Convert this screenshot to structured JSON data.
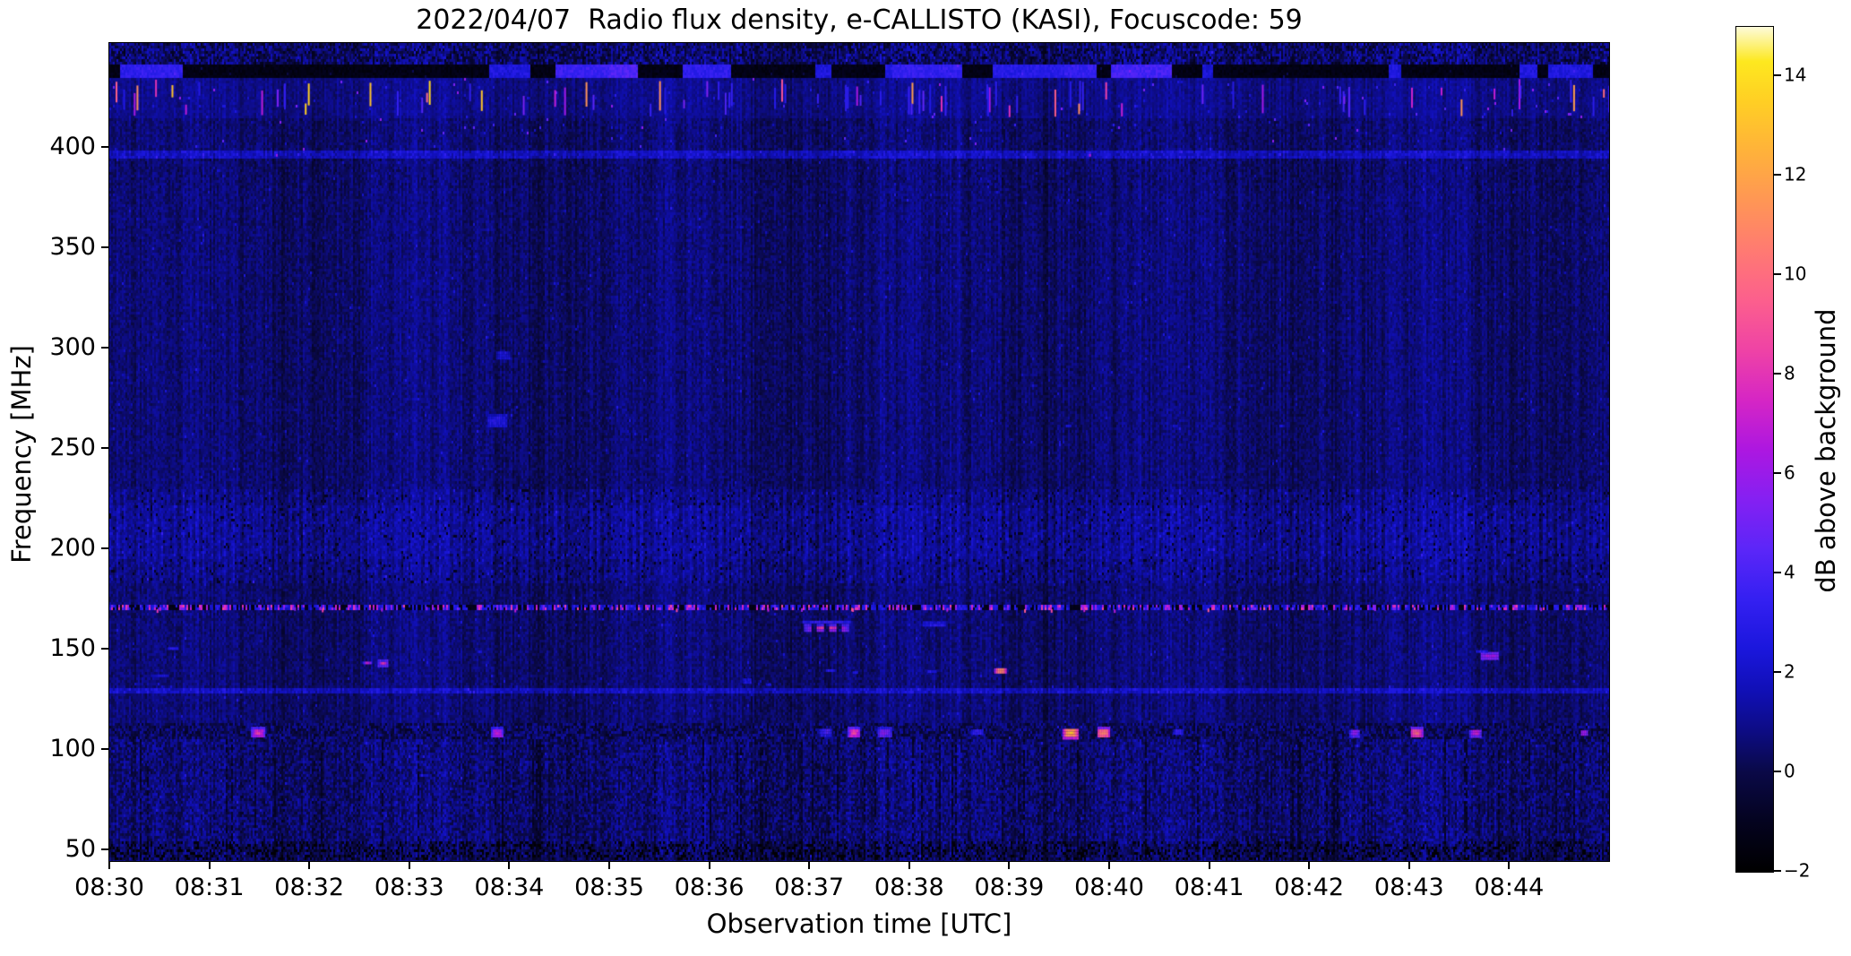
{
  "figure": {
    "background_color": "#ffffff",
    "spine_color": "#000000",
    "text_color": "#000000"
  },
  "chart_data": {
    "type": "heatmap",
    "title": "2022/04/07  Radio flux density, e-CALLISTO (KASI), Focuscode: 59",
    "xlabel": "Observation time [UTC]",
    "ylabel": "Frequency [MHz]",
    "colorbar_label": "dB above background",
    "x_ticks": [
      "08:30",
      "08:31",
      "08:32",
      "08:33",
      "08:34",
      "08:35",
      "08:36",
      "08:37",
      "08:38",
      "08:39",
      "08:40",
      "08:41",
      "08:42",
      "08:43",
      "08:44"
    ],
    "y_ticks": [
      "400",
      "350",
      "300",
      "250",
      "200",
      "150",
      "100",
      "50"
    ],
    "colorbar_ticks": [
      "14",
      "12",
      "10",
      "8",
      "6",
      "4",
      "2",
      "0",
      "−2"
    ],
    "x_range_utc": {
      "start": "08:30:00",
      "end": "08:45:00"
    },
    "y_range_mhz": [
      44,
      452
    ],
    "color_range_db": [
      -2,
      15
    ],
    "grid": false,
    "legend": "none",
    "background_noise_db": {
      "base": 0.55,
      "column_variation": 0.85,
      "cell_variation": 1.1
    },
    "colormap_stops": [
      {
        "db": -2.0,
        "color": "#000000"
      },
      {
        "db": -1.0,
        "color": "#04031f"
      },
      {
        "db": 0.0,
        "color": "#0a0947"
      },
      {
        "db": 0.8,
        "color": "#0d0c82"
      },
      {
        "db": 1.6,
        "color": "#100fb4"
      },
      {
        "db": 2.5,
        "color": "#1b17dd"
      },
      {
        "db": 3.5,
        "color": "#3520f2"
      },
      {
        "db": 4.5,
        "color": "#5c26f8"
      },
      {
        "db": 5.5,
        "color": "#8520f2"
      },
      {
        "db": 6.5,
        "color": "#ad17e0"
      },
      {
        "db": 7.5,
        "color": "#d626c4"
      },
      {
        "db": 8.5,
        "color": "#ef43a5"
      },
      {
        "db": 9.5,
        "color": "#fc5f8d"
      },
      {
        "db": 10.5,
        "color": "#ff7a72"
      },
      {
        "db": 11.5,
        "color": "#ff9655"
      },
      {
        "db": 12.5,
        "color": "#ffb23a"
      },
      {
        "db": 13.5,
        "color": "#ffcf24"
      },
      {
        "db": 14.3,
        "color": "#fde81f"
      },
      {
        "db": 15.0,
        "color": "#fdfbda"
      }
    ],
    "texture_bands": [
      {
        "name": "top-mottled",
        "f_hi": 452.0,
        "f_lo": 441.0,
        "type": "mottled"
      },
      {
        "name": "calibration-black-strip",
        "f_hi": 441.0,
        "f_lo": 434.0,
        "type": "dark-dashes"
      },
      {
        "name": "rfi-tick-row",
        "f_hi": 434.0,
        "f_lo": 415.0,
        "type": "tick-row"
      },
      {
        "name": "line-397mhz",
        "f_hi": 398.5,
        "f_lo": 395.0,
        "type": "faint-line"
      },
      {
        "name": "stripe-band-200mhz",
        "f_hi": 230.0,
        "f_lo": 183.0,
        "type": "stripes"
      },
      {
        "name": "speckle-line-170mhz",
        "f_hi": 171.5,
        "f_lo": 168.5,
        "type": "speckle-line"
      },
      {
        "name": "line-129mhz",
        "f_hi": 130.5,
        "f_lo": 127.5,
        "type": "faint-line"
      },
      {
        "name": "rfi-band-109mhz",
        "f_hi": 112.5,
        "f_lo": 104.5,
        "type": "dark-mottled"
      },
      {
        "name": "low-band",
        "f_hi": 104.5,
        "f_lo": 44.0,
        "type": "streaky"
      }
    ],
    "features": [
      {
        "name": "burst-161mhz-dashed",
        "time": "08:36:57",
        "duration_s": 26,
        "freq_mhz": 160.8,
        "height_mhz": 3.0,
        "peak_db": 8.2,
        "style": "dashes"
      },
      {
        "name": "burst-164mhz-smear",
        "time": "08:36:56",
        "duration_s": 28,
        "freq_mhz": 163.9,
        "height_mhz": 2.6,
        "peak_db": 3.4,
        "style": "smear"
      },
      {
        "name": "smear-162mhz",
        "time": "08:38:07",
        "duration_s": 15,
        "freq_mhz": 162.5,
        "height_mhz": 2.2,
        "peak_db": 3.0,
        "style": "smear"
      },
      {
        "name": "blob-139mhz-orange",
        "time": "08:38:51",
        "duration_s": 7,
        "freq_mhz": 139.5,
        "height_mhz": 4.0,
        "peak_db": 11.5,
        "style": "blob"
      },
      {
        "name": "blob-143mhz-a",
        "time": "08:32:32",
        "duration_s": 5,
        "freq_mhz": 143.5,
        "height_mhz": 2.6,
        "peak_db": 7.0,
        "style": "blob"
      },
      {
        "name": "blob-143mhz-b",
        "time": "08:32:41",
        "duration_s": 6,
        "freq_mhz": 143.2,
        "height_mhz": 2.8,
        "peak_db": 8.0,
        "style": "blob"
      },
      {
        "name": "smear-147mhz",
        "time": "08:43:43",
        "duration_s": 10,
        "freq_mhz": 146.8,
        "height_mhz": 3.0,
        "peak_db": 6.5,
        "style": "smear"
      },
      {
        "name": "rfi109-0831",
        "time": "08:31:25",
        "duration_s": 8,
        "freq_mhz": 108.5,
        "height_mhz": 5.0,
        "peak_db": 8.0,
        "style": "blob"
      },
      {
        "name": "rfi109-0833",
        "time": "08:33:49",
        "duration_s": 7,
        "freq_mhz": 108.5,
        "height_mhz": 5.0,
        "peak_db": 7.2,
        "style": "blob"
      },
      {
        "name": "rfi109-0837a",
        "time": "08:37:06",
        "duration_s": 7,
        "freq_mhz": 109.0,
        "height_mhz": 4.5,
        "peak_db": 4.2,
        "style": "blob"
      },
      {
        "name": "rfi109-0837b",
        "time": "08:37:23",
        "duration_s": 7,
        "freq_mhz": 108.5,
        "height_mhz": 5.0,
        "peak_db": 8.6,
        "style": "blob"
      },
      {
        "name": "rfi109-0837c",
        "time": "08:37:40",
        "duration_s": 9,
        "freq_mhz": 108.5,
        "height_mhz": 5.0,
        "peak_db": 5.6,
        "style": "blob"
      },
      {
        "name": "rfi109-0838",
        "time": "08:38:37",
        "duration_s": 7,
        "freq_mhz": 109.0,
        "height_mhz": 4.0,
        "peak_db": 3.6,
        "style": "blob"
      },
      {
        "name": "rfi109-0839-bright",
        "time": "08:39:32",
        "duration_s": 9,
        "freq_mhz": 108.5,
        "height_mhz": 5.5,
        "peak_db": 12.8,
        "style": "blob"
      },
      {
        "name": "rfi109-0839b",
        "time": "08:39:52",
        "duration_s": 8,
        "freq_mhz": 108.5,
        "height_mhz": 5.0,
        "peak_db": 11.2,
        "style": "blob"
      },
      {
        "name": "rfi109-0840",
        "time": "08:40:38",
        "duration_s": 6,
        "freq_mhz": 109.0,
        "height_mhz": 4.0,
        "peak_db": 3.6,
        "style": "blob"
      },
      {
        "name": "rfi109-0842",
        "time": "08:42:24",
        "duration_s": 6,
        "freq_mhz": 108.5,
        "height_mhz": 4.5,
        "peak_db": 6.0,
        "style": "blob"
      },
      {
        "name": "rfi109-0843a",
        "time": "08:43:00",
        "duration_s": 8,
        "freq_mhz": 108.5,
        "height_mhz": 5.0,
        "peak_db": 9.6,
        "style": "blob"
      },
      {
        "name": "rfi109-0843b",
        "time": "08:43:36",
        "duration_s": 7,
        "freq_mhz": 108.5,
        "height_mhz": 4.5,
        "peak_db": 7.2,
        "style": "blob"
      },
      {
        "name": "rfi109-0844",
        "time": "08:44:42",
        "duration_s": 5,
        "freq_mhz": 108.5,
        "height_mhz": 4.0,
        "peak_db": 6.4,
        "style": "blob"
      },
      {
        "name": "dash-140mhz-a",
        "time": "08:37:10",
        "duration_s": 5,
        "freq_mhz": 140.0,
        "height_mhz": 2.0,
        "peak_db": 3.0,
        "style": "smear"
      },
      {
        "name": "dash-139mhz-b",
        "time": "08:37:25",
        "duration_s": 4,
        "freq_mhz": 139.0,
        "height_mhz": 2.0,
        "peak_db": 2.8,
        "style": "smear"
      },
      {
        "name": "dash-139mhz-c",
        "time": "08:38:10",
        "duration_s": 6,
        "freq_mhz": 139.5,
        "height_mhz": 2.0,
        "peak_db": 2.8,
        "style": "smear"
      },
      {
        "name": "smudge-134mhz-a",
        "time": "08:36:20",
        "duration_s": 5,
        "freq_mhz": 134.0,
        "height_mhz": 2.2,
        "peak_db": 2.7,
        "style": "smear"
      },
      {
        "name": "smudge-133mhz-b",
        "time": "08:36:33",
        "duration_s": 4,
        "freq_mhz": 133.0,
        "height_mhz": 2.0,
        "peak_db": 2.5,
        "style": "smear"
      },
      {
        "name": "smudge-264mhz",
        "time": "08:33:46",
        "duration_s": 12,
        "freq_mhz": 264.0,
        "height_mhz": 6.0,
        "peak_db": 2.9,
        "style": "smear"
      },
      {
        "name": "smudge-297mhz",
        "time": "08:33:52",
        "duration_s": 8,
        "freq_mhz": 297.0,
        "height_mhz": 5.0,
        "peak_db": 2.5,
        "style": "smear"
      },
      {
        "name": "dot-262mhz-0839",
        "time": "08:39:33",
        "duration_s": 4,
        "freq_mhz": 262.0,
        "height_mhz": 2.0,
        "peak_db": 2.3,
        "style": "smear"
      },
      {
        "name": "dot-262mhz-0840",
        "time": "08:40:37",
        "duration_s": 4,
        "freq_mhz": 262.0,
        "height_mhz": 2.0,
        "peak_db": 2.1,
        "style": "smear"
      },
      {
        "name": "dot-262mhz-0841",
        "time": "08:41:41",
        "duration_s": 4,
        "freq_mhz": 262.0,
        "height_mhz": 2.0,
        "peak_db": 2.1,
        "style": "smear"
      },
      {
        "name": "dot-397mhz-0831",
        "time": "08:31:39",
        "duration_s": 2,
        "freq_mhz": 397.0,
        "height_mhz": 2.0,
        "peak_db": 6.0,
        "style": "blob"
      },
      {
        "name": "dot-397mhz-0839",
        "time": "08:39:47",
        "duration_s": 2,
        "freq_mhz": 397.0,
        "height_mhz": 2.0,
        "peak_db": 6.5,
        "style": "blob"
      },
      {
        "name": "smudge-152mhz-left",
        "time": "08:30:35",
        "duration_s": 6,
        "freq_mhz": 151.0,
        "height_mhz": 2.0,
        "peak_db": 2.6,
        "style": "smear"
      },
      {
        "name": "smudge-138mhz-left",
        "time": "08:30:25",
        "duration_s": 10,
        "freq_mhz": 137.5,
        "height_mhz": 1.8,
        "peak_db": 2.4,
        "style": "smear"
      },
      {
        "name": "smudge-148mhz-0843",
        "time": "08:43:40",
        "duration_s": 7,
        "freq_mhz": 149.5,
        "height_mhz": 2.0,
        "peak_db": 3.0,
        "style": "smear"
      }
    ]
  }
}
